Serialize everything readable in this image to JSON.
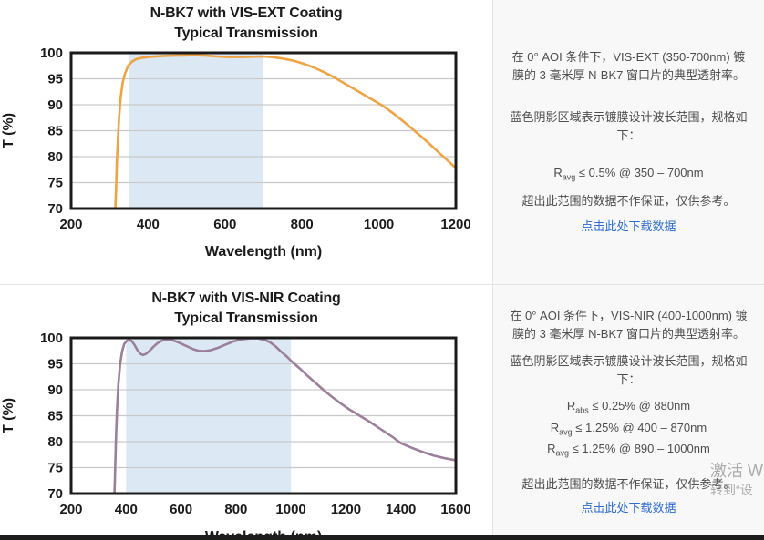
{
  "colors": {
    "vis_ext_line": "#f0a342",
    "vis_nir_line": "#9c7f9b",
    "shaded_region": "#dce9f5",
    "link": "#2b6bd3",
    "plot_border": "#1a1a1a",
    "gridline": "#c9c9c9",
    "panel_background": "#f8f8f8"
  },
  "chart_data": [
    {
      "type": "line",
      "title": "N-BK7 with VIS-EXT Coating",
      "subtitle": "Typical Transmission",
      "xlabel": "Wavelength (nm)",
      "ylabel": "T (%)",
      "xlim": [
        200,
        1200
      ],
      "ylim": [
        70,
        100
      ],
      "xticks": [
        200,
        400,
        600,
        800,
        1000,
        1200
      ],
      "yticks": [
        70,
        75,
        80,
        85,
        90,
        95,
        100
      ],
      "grid": "horizontal",
      "legend": "none",
      "line_color": "#f0a342",
      "shaded_region": {
        "x0": 350,
        "x1": 700,
        "color": "#dce9f5",
        "meaning": "coating design wavelength range"
      },
      "series": [
        {
          "name": "VIS-EXT coated N-BK7 transmission",
          "points": [
            [
              315,
              70
            ],
            [
              317,
              74
            ],
            [
              319,
              79
            ],
            [
              322,
              84
            ],
            [
              325,
              88
            ],
            [
              329,
              91.5
            ],
            [
              334,
              94.2
            ],
            [
              340,
              96
            ],
            [
              348,
              97.5
            ],
            [
              358,
              98.3
            ],
            [
              370,
              98.8
            ],
            [
              385,
              99.05
            ],
            [
              400,
              99.2
            ],
            [
              430,
              99.35
            ],
            [
              460,
              99.45
            ],
            [
              490,
              99.5
            ],
            [
              520,
              99.55
            ],
            [
              550,
              99.45
            ],
            [
              580,
              99.3
            ],
            [
              610,
              99.2
            ],
            [
              640,
              99.2
            ],
            [
              670,
              99.25
            ],
            [
              700,
              99.3
            ],
            [
              725,
              99.15
            ],
            [
              750,
              98.9
            ],
            [
              775,
              98.55
            ],
            [
              800,
              98.0
            ],
            [
              830,
              97.2
            ],
            [
              860,
              96.2
            ],
            [
              890,
              95.0
            ],
            [
              920,
              93.7
            ],
            [
              950,
              92.4
            ],
            [
              980,
              91.1
            ],
            [
              1010,
              89.8
            ],
            [
              1040,
              88.2
            ],
            [
              1070,
              86.4
            ],
            [
              1100,
              84.5
            ],
            [
              1125,
              82.9
            ],
            [
              1150,
              81.2
            ],
            [
              1175,
              79.5
            ],
            [
              1200,
              77.8
            ]
          ]
        }
      ]
    },
    {
      "type": "line",
      "title": "N-BK7 with VIS-NIR Coating",
      "subtitle": "Typical Transmission",
      "xlabel": "Wavelength (nm)",
      "ylabel": "T (%)",
      "xlim": [
        200,
        1600
      ],
      "ylim": [
        70,
        100
      ],
      "xticks": [
        200,
        400,
        600,
        800,
        1000,
        1200,
        1400,
        1600
      ],
      "yticks": [
        70,
        75,
        80,
        85,
        90,
        95,
        100
      ],
      "grid": "horizontal",
      "legend": "none",
      "line_color": "#9c7f9b",
      "shaded_region": {
        "x0": 400,
        "x1": 1000,
        "color": "#dce9f5",
        "meaning": "coating design wavelength range"
      },
      "series": [
        {
          "name": "VIS-NIR coated N-BK7 transmission",
          "points": [
            [
              358,
              70
            ],
            [
              360,
              74
            ],
            [
              363,
              80
            ],
            [
              367,
              86
            ],
            [
              372,
              91
            ],
            [
              378,
              94.8
            ],
            [
              385,
              97.3
            ],
            [
              393,
              98.8
            ],
            [
              402,
              99.4
            ],
            [
              412,
              99.55
            ],
            [
              420,
              99.4
            ],
            [
              430,
              98.7
            ],
            [
              442,
              97.6
            ],
            [
              453,
              96.9
            ],
            [
              462,
              96.7
            ],
            [
              472,
              96.9
            ],
            [
              485,
              97.5
            ],
            [
              500,
              98.3
            ],
            [
              515,
              99.0
            ],
            [
              530,
              99.45
            ],
            [
              548,
              99.65
            ],
            [
              565,
              99.6
            ],
            [
              580,
              99.35
            ],
            [
              600,
              98.9
            ],
            [
              620,
              98.4
            ],
            [
              645,
              97.8
            ],
            [
              665,
              97.5
            ],
            [
              685,
              97.45
            ],
            [
              705,
              97.6
            ],
            [
              730,
              98.0
            ],
            [
              760,
              98.65
            ],
            [
              790,
              99.3
            ],
            [
              820,
              99.7
            ],
            [
              850,
              99.9
            ],
            [
              880,
              99.9
            ],
            [
              905,
              99.6
            ],
            [
              925,
              99.1
            ],
            [
              945,
              98.3
            ],
            [
              965,
              97.3
            ],
            [
              985,
              96.4
            ],
            [
              1000,
              95.6
            ],
            [
              1030,
              94.2
            ],
            [
              1060,
              92.7
            ],
            [
              1090,
              91.3
            ],
            [
              1120,
              89.9
            ],
            [
              1150,
              88.6
            ],
            [
              1180,
              87.4
            ],
            [
              1210,
              86.3
            ],
            [
              1250,
              85.0
            ],
            [
              1290,
              83.7
            ],
            [
              1330,
              82.3
            ],
            [
              1370,
              80.9
            ],
            [
              1400,
              79.7
            ],
            [
              1440,
              78.8
            ],
            [
              1480,
              78.0
            ],
            [
              1520,
              77.3
            ],
            [
              1560,
              76.8
            ],
            [
              1600,
              76.4
            ]
          ]
        }
      ]
    }
  ],
  "sections": [
    {
      "panel": {
        "description_1": "在 0° AOI 条件下，VIS-EXT (350-700nm) 镀膜的 3 毫米厚 N-BK7 窗口片的典型透射率。",
        "description_2": "蓝色阴影区域表示镀膜设计波长范围，规格如下：",
        "specs": [
          {
            "symbol": "R",
            "subscript": "avg",
            "condition": " ≤ 0.5% @ 350 – 700nm"
          }
        ],
        "disclaimer": "超出此范围的数据不作保证，仅供参考。",
        "link_label": "点击此处下载数据"
      }
    },
    {
      "panel": {
        "description_1": "在 0° AOI 条件下，VIS-NIR (400-1000nm) 镀膜的 3 毫米厚 N-BK7 窗口片的典型透射率。",
        "description_2": "蓝色阴影区域表示镀膜设计波长范围，规格如下：",
        "specs": [
          {
            "symbol": "R",
            "subscript": "abs",
            "condition": " ≤ 0.25% @ 880nm"
          },
          {
            "symbol": "R",
            "subscript": "avg",
            "condition": " ≤ 1.25% @ 400 – 870nm"
          },
          {
            "symbol": "R",
            "subscript": "avg",
            "condition": " ≤ 1.25% @ 890 – 1000nm"
          }
        ],
        "disclaimer": "超出此范围的数据不作保证，仅供参考。",
        "link_label": "点击此处下载数据"
      }
    }
  ],
  "watermark": {
    "line_1": "激活 W",
    "line_2": "转到“设"
  }
}
